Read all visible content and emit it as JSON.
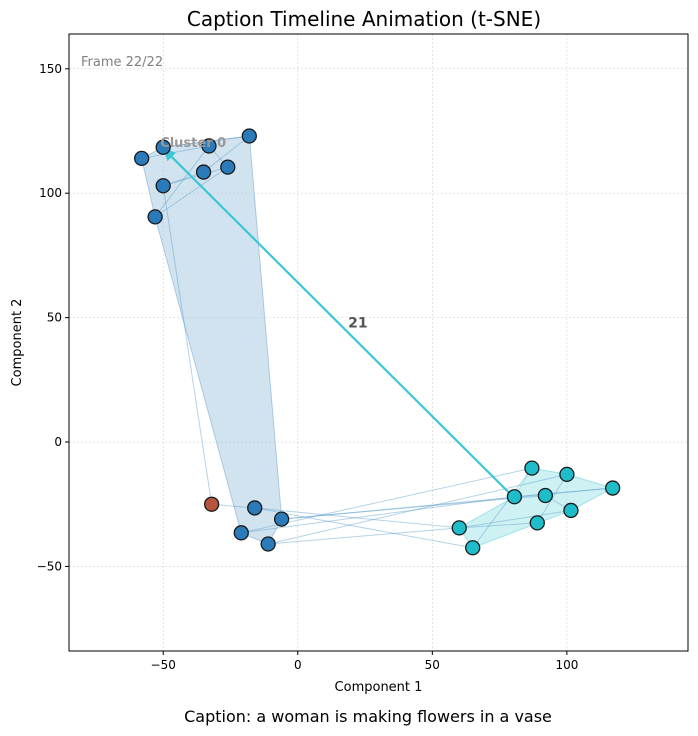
{
  "chart_data": {
    "type": "scatter",
    "title": "Caption Timeline Animation (t-SNE)",
    "xlabel": "Component 1",
    "ylabel": "Component 2",
    "xlim": [
      -85,
      145
    ],
    "ylim": [
      -84,
      164
    ],
    "xticks": [
      -50,
      0,
      50,
      100
    ],
    "yticks": [
      -50,
      0,
      50,
      100,
      150
    ],
    "grid": true,
    "frame_label": "Frame 22/22",
    "caption": "Caption: a woman is making flowers in a vase",
    "cluster_label": {
      "text": "Cluster 0",
      "x": -50,
      "y": 119
    },
    "arrow": {
      "label": "21",
      "from": [
        80,
        -22
      ],
      "to": [
        -50,
        118
      ],
      "color": "#3cc6d6"
    },
    "clusters": [
      {
        "color": "#2b7bba",
        "hull_color": "#a6c8e2",
        "points": [
          [
            -58,
            114
          ],
          [
            -50,
            118.5
          ],
          [
            -33,
            119
          ],
          [
            -18,
            123
          ],
          [
            -50,
            103
          ],
          [
            -35,
            108.5
          ],
          [
            -26,
            110.5
          ],
          [
            -53,
            90.5
          ],
          [
            -16,
            -26.5
          ],
          [
            -6,
            -31
          ],
          [
            -21,
            -36.5
          ],
          [
            -11,
            -41
          ]
        ],
        "hull": [
          [
            -58,
            114
          ],
          [
            -50,
            118.5
          ],
          [
            -18,
            123
          ],
          [
            -6,
            -31
          ],
          [
            -11,
            -41
          ],
          [
            -21,
            -36.5
          ],
          [
            -53,
            90.5
          ]
        ]
      },
      {
        "color": "#1fbdc9",
        "hull_color": "#9ee3ea",
        "points": [
          [
            87,
            -10.5
          ],
          [
            100,
            -13
          ],
          [
            117,
            -18.5
          ],
          [
            80.5,
            -22
          ],
          [
            92,
            -21.5
          ],
          [
            101.5,
            -27.5
          ],
          [
            89,
            -32.5
          ],
          [
            60,
            -34.5
          ],
          [
            65,
            -42.5
          ]
        ],
        "hull": [
          [
            87,
            -10.5
          ],
          [
            100,
            -13
          ],
          [
            117,
            -18.5
          ],
          [
            101.5,
            -27.5
          ],
          [
            65,
            -42.5
          ],
          [
            60,
            -34.5
          ],
          [
            80.5,
            -22
          ]
        ]
      },
      {
        "color": "#b5533c",
        "points": [
          [
            -32,
            -25
          ]
        ]
      }
    ],
    "trail_edges": [
      [
        [
          -58,
          114
        ],
        [
          -33,
          119
        ]
      ],
      [
        [
          -50,
          118.5
        ],
        [
          -18,
          123
        ]
      ],
      [
        [
          -33,
          119
        ],
        [
          -26,
          110.5
        ]
      ],
      [
        [
          -18,
          123
        ],
        [
          -35,
          108.5
        ]
      ],
      [
        [
          -50,
          103
        ],
        [
          -26,
          110.5
        ]
      ],
      [
        [
          -53,
          90.5
        ],
        [
          -33,
          119
        ]
      ],
      [
        [
          -50,
          103
        ],
        [
          -35,
          108.5
        ]
      ],
      [
        [
          -53,
          90.5
        ],
        [
          -26,
          110.5
        ]
      ],
      [
        [
          -50,
          103
        ],
        [
          -32,
          -25
        ]
      ],
      [
        [
          -32,
          -25
        ],
        [
          -16,
          -26.5
        ]
      ],
      [
        [
          -16,
          -26.5
        ],
        [
          60,
          -34.5
        ]
      ],
      [
        [
          -6,
          -31
        ],
        [
          117,
          -18.5
        ]
      ],
      [
        [
          -21,
          -36.5
        ],
        [
          87,
          -10.5
        ]
      ],
      [
        [
          -11,
          -41
        ],
        [
          60,
          -34.5
        ]
      ],
      [
        [
          -6,
          -31
        ],
        [
          92,
          -21.5
        ]
      ],
      [
        [
          -16,
          -26.5
        ],
        [
          65,
          -42.5
        ]
      ],
      [
        [
          -21,
          -36.5
        ],
        [
          80.5,
          -22
        ]
      ],
      [
        [
          -11,
          -41
        ],
        [
          100,
          -13
        ]
      ],
      [
        [
          60,
          -34.5
        ],
        [
          89,
          -32.5
        ]
      ],
      [
        [
          65,
          -42.5
        ],
        [
          87,
          -10.5
        ]
      ],
      [
        [
          80.5,
          -22
        ],
        [
          117,
          -18.5
        ]
      ],
      [
        [
          92,
          -21.5
        ],
        [
          101.5,
          -27.5
        ]
      ],
      [
        [
          89,
          -32.5
        ],
        [
          100,
          -13
        ]
      ],
      [
        [
          60,
          -34.5
        ],
        [
          101.5,
          -27.5
        ]
      ]
    ]
  }
}
